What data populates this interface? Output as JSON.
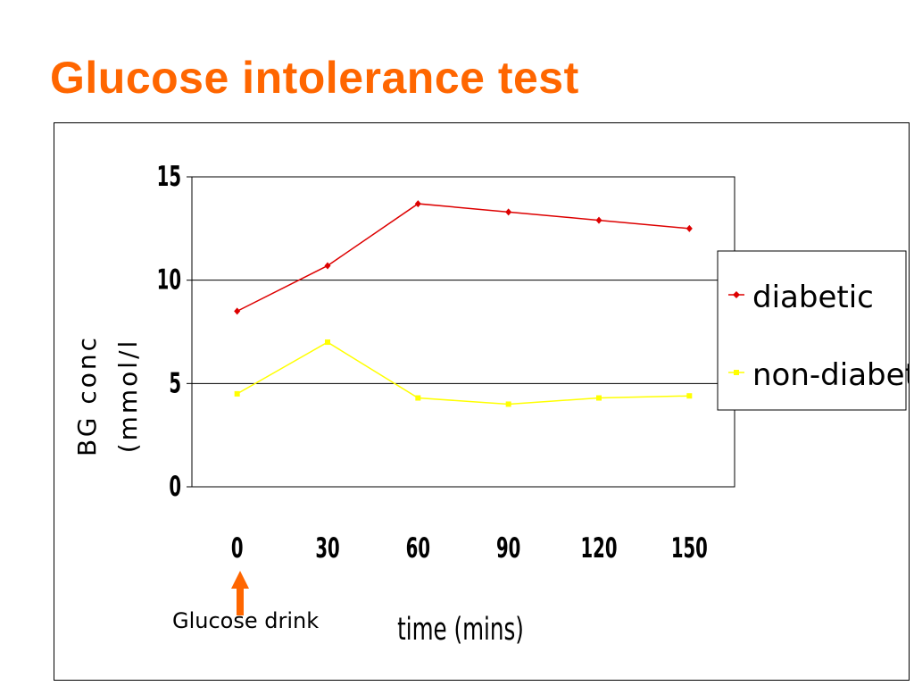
{
  "slide": {
    "title": "Glucose intolerance test"
  },
  "chart_data": {
    "type": "line",
    "x": [
      0,
      30,
      60,
      90,
      120,
      150
    ],
    "categories": [
      "0",
      "30",
      "60",
      "90",
      "120",
      "150"
    ],
    "series": [
      {
        "name": "diabetic",
        "values": [
          8.5,
          10.7,
          13.7,
          13.3,
          12.9,
          12.5
        ],
        "color": "#dd0000"
      },
      {
        "name": "non-diabetic",
        "values": [
          4.5,
          7.0,
          4.3,
          4.0,
          4.3,
          4.4
        ],
        "color": "#ffff00"
      }
    ],
    "ylim": [
      0,
      15
    ],
    "yticks": [
      "0",
      "5",
      "10",
      "15"
    ],
    "ytick_values": [
      0,
      5,
      10,
      15
    ],
    "ylabel_lines": [
      "BG conc",
      "(mmol/l"
    ],
    "xlabel": "time (mins)",
    "grid": true,
    "legend": "right",
    "annotations": [
      {
        "text": "Glucose drink",
        "at_x": 0,
        "arrow_color": "#ff6600"
      }
    ]
  }
}
